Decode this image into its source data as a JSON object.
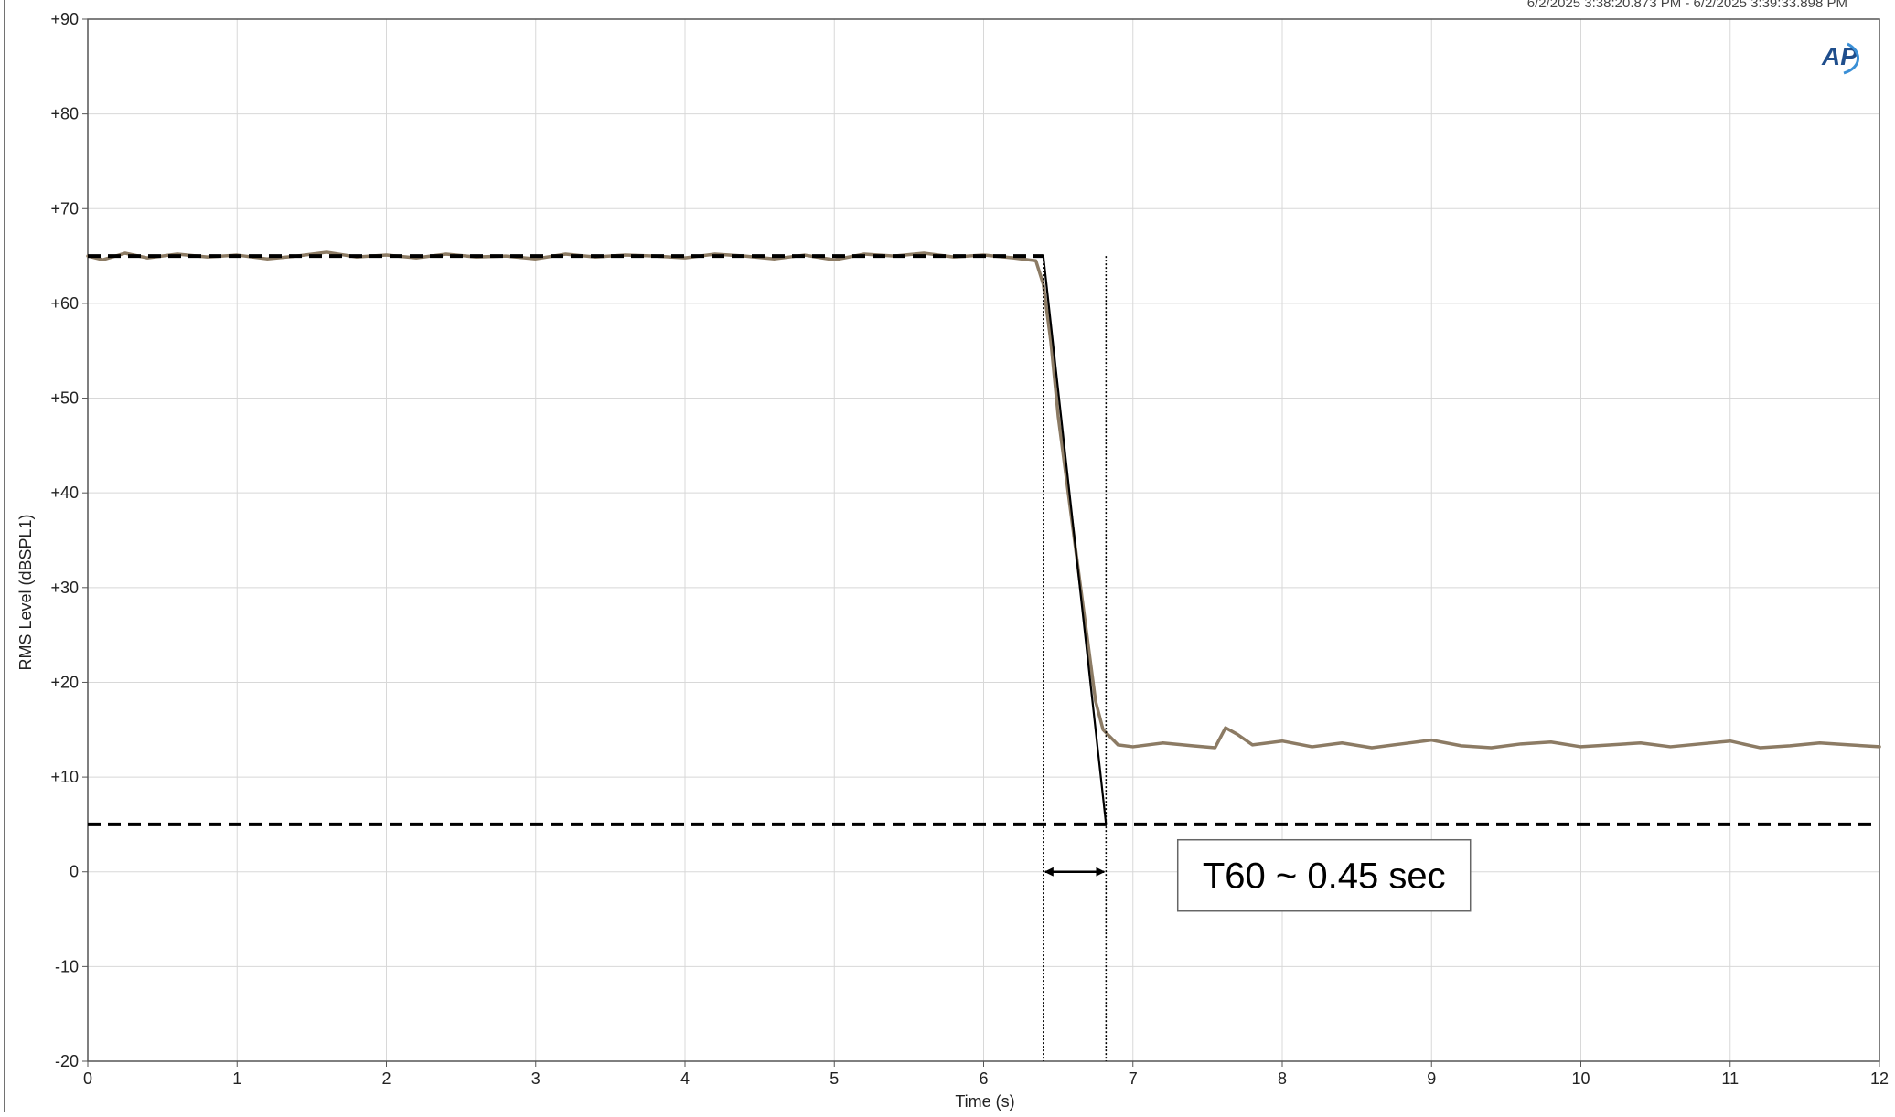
{
  "chart_data": {
    "type": "line",
    "timestamp": "6/2/2025 3:38:20.873 PM - 6/2/2025 3:39:33.898 PM",
    "logo_text": "AP",
    "xlabel": "Time (s)",
    "ylabel": "RMS Level (dBSPL1)",
    "xlim": [
      0,
      12
    ],
    "ylim": [
      -20,
      90
    ],
    "x_ticks": [
      0,
      1,
      2,
      3,
      4,
      5,
      6,
      7,
      8,
      9,
      10,
      11,
      12
    ],
    "x_tick_labels": [
      "0",
      "1",
      "2",
      "3",
      "4",
      "5",
      "6",
      "7",
      "8",
      "9",
      "10",
      "11",
      "12"
    ],
    "y_ticks": [
      90,
      80,
      70,
      60,
      50,
      40,
      30,
      20,
      10,
      0,
      -10,
      -20
    ],
    "y_tick_labels": [
      "+90",
      "+80",
      "+70",
      "+60",
      "+50",
      "+40",
      "+30",
      "+20",
      "+10",
      "0",
      "-10",
      "-20"
    ],
    "grid": true,
    "series": [
      {
        "color": "#8c7b64",
        "style": "solid",
        "x": [
          0,
          0.1,
          0.25,
          0.4,
          0.6,
          0.8,
          1.0,
          1.2,
          1.4,
          1.6,
          1.8,
          2.0,
          2.2,
          2.4,
          2.6,
          2.8,
          3.0,
          3.2,
          3.4,
          3.6,
          3.8,
          4.0,
          4.2,
          4.4,
          4.6,
          4.8,
          5.0,
          5.2,
          5.4,
          5.6,
          5.8,
          6.0,
          6.2,
          6.35,
          6.4,
          6.45,
          6.5,
          6.6,
          6.7,
          6.75,
          6.8,
          6.9,
          7.0,
          7.2,
          7.4,
          7.55,
          7.62,
          7.7,
          7.8,
          8.0,
          8.2,
          8.4,
          8.6,
          8.8,
          9.0,
          9.2,
          9.4,
          9.6,
          9.8,
          10.0,
          10.2,
          10.4,
          10.6,
          10.8,
          11.0,
          11.2,
          11.4,
          11.6,
          11.8,
          12.0
        ],
        "y": [
          65,
          64.6,
          65.3,
          64.8,
          65.2,
          64.9,
          65.1,
          64.7,
          65.0,
          65.4,
          64.9,
          65.1,
          64.8,
          65.2,
          64.9,
          65.0,
          64.7,
          65.2,
          64.9,
          65.1,
          65.0,
          64.8,
          65.2,
          65.0,
          64.7,
          65.1,
          64.6,
          65.2,
          65.0,
          65.3,
          64.9,
          65.1,
          64.8,
          64.5,
          62,
          56,
          48,
          36,
          24,
          18,
          15,
          13.4,
          13.2,
          13.6,
          13.3,
          13.1,
          15.2,
          14.5,
          13.4,
          13.8,
          13.2,
          13.6,
          13.1,
          13.5,
          13.9,
          13.3,
          13.1,
          13.5,
          13.7,
          13.2,
          13.4,
          13.6,
          13.2,
          13.5,
          13.8,
          13.1,
          13.3,
          13.6,
          13.4,
          13.2
        ]
      },
      {
        "color": "#000000",
        "style": "dashed",
        "x": [
          0,
          6.4
        ],
        "y": [
          65,
          65
        ]
      },
      {
        "color": "#000000",
        "style": "solid",
        "x": [
          6.4,
          6.82
        ],
        "y": [
          65,
          5
        ]
      },
      {
        "color": "#000000",
        "style": "dashed",
        "x": [
          0,
          12
        ],
        "y": [
          5,
          5
        ]
      }
    ],
    "markers": {
      "vertical_lines_x": [
        6.4,
        6.82
      ],
      "arrow": {
        "x_start": 6.4,
        "x_end": 6.82,
        "y": 0
      }
    },
    "annotation": {
      "text": "T60 ~ 0.45 sec",
      "x": 7.3,
      "y": 0
    }
  }
}
